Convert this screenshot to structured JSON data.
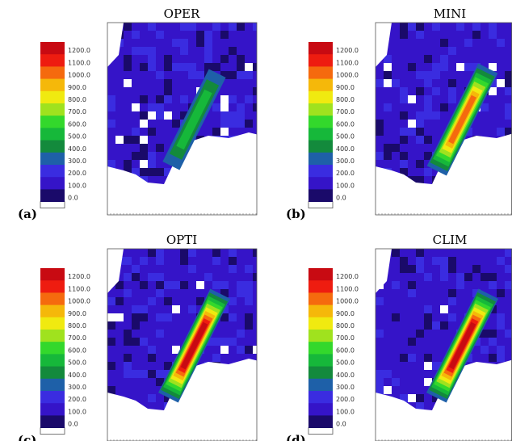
{
  "figure": {
    "colors": {
      "white": "#ffffff",
      "bands": [
        "#1a0a6a",
        "#3514c8",
        "#3a2ce0",
        "#1e60a8",
        "#138a3c",
        "#16b83a",
        "#33d82c",
        "#a0e21e",
        "#f0ea10",
        "#f5b80a",
        "#f56a0e",
        "#ee1c10",
        "#c80a12"
      ],
      "frame": "#555555"
    }
  },
  "chart_data": [
    {
      "type": "heatmap",
      "panel_label": "(a)",
      "title": "OPER",
      "colorbar_ticks": [
        "0.0",
        "100.0",
        "200.0",
        "300.0",
        "400.0",
        "500.0",
        "600.0",
        "700.0",
        "800.0",
        "900.0",
        "1000.0",
        "1100.0",
        "1200.0"
      ],
      "peak_value": 500
    },
    {
      "type": "heatmap",
      "panel_label": "(b)",
      "title": "MINI",
      "colorbar_ticks": [
        "0.0",
        "100.0",
        "200.0",
        "300.0",
        "400.0",
        "500.0",
        "600.0",
        "700.0",
        "800.0",
        "900.0",
        "1000.0",
        "1100.0",
        "1200.0"
      ],
      "peak_value": 1000
    },
    {
      "type": "heatmap",
      "panel_label": "(c)",
      "title": "OPTI",
      "colorbar_ticks": [
        "0.0",
        "100.0",
        "200.0",
        "300.0",
        "400.0",
        "500.0",
        "600.0",
        "700.0",
        "800.0",
        "900.0",
        "1000.0",
        "1100.0",
        "1200.0"
      ],
      "peak_value": 1200
    },
    {
      "type": "heatmap",
      "panel_label": "(d)",
      "title": "CLIM",
      "colorbar_ticks": [
        "0.0",
        "100.0",
        "200.0",
        "300.0",
        "400.0",
        "500.0",
        "600.0",
        "700.0",
        "800.0",
        "900.0",
        "1000.0",
        "1100.0",
        "1200.0"
      ],
      "peak_value": 1200
    }
  ]
}
